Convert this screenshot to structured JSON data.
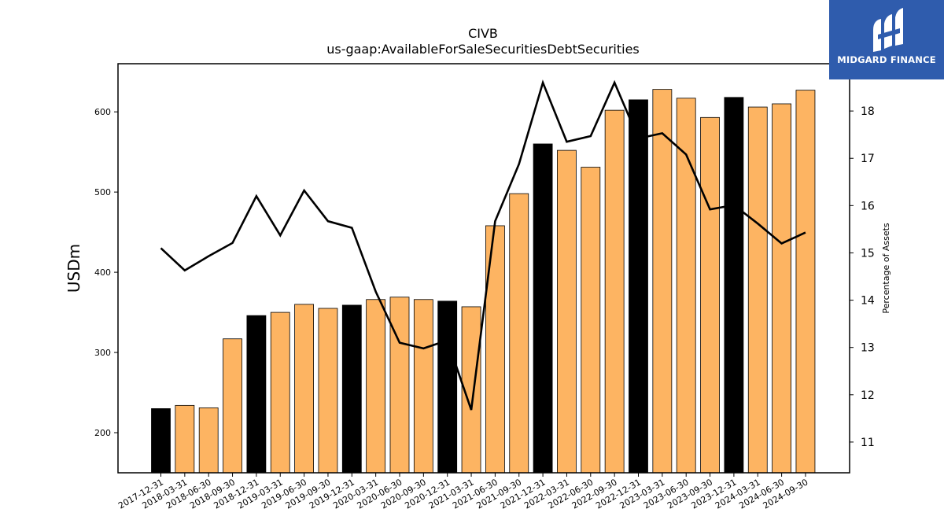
{
  "chart_data": {
    "type": "bar",
    "title": "CIVB",
    "subtitle": "us-gaap:AvailableForSaleSecuritiesDebtSecurities",
    "ylabel": "USDm",
    "y2label": "Percentage of Assets",
    "ylim": [
      150,
      660
    ],
    "y2lim": [
      10.35,
      19.0
    ],
    "yticks": [
      200,
      300,
      400,
      500,
      600
    ],
    "y2ticks": [
      11,
      12,
      13,
      14,
      15,
      16,
      17,
      18
    ],
    "grid": false,
    "categories": [
      "2017-12-31",
      "2018-03-31",
      "2018-06-30",
      "2018-09-30",
      "2018-12-31",
      "2019-03-31",
      "2019-06-30",
      "2019-09-30",
      "2019-12-31",
      "2020-03-31",
      "2020-06-30",
      "2020-09-30",
      "2020-12-31",
      "2021-03-31",
      "2021-06-30",
      "2021-09-30",
      "2021-12-31",
      "2022-03-31",
      "2022-06-30",
      "2022-09-30",
      "2022-12-31",
      "2023-03-31",
      "2023-06-30",
      "2023-09-30",
      "2023-12-31",
      "2024-03-31",
      "2024-06-30",
      "2024-09-30"
    ],
    "series": [
      {
        "kind": "bar",
        "values": [
          230,
          234,
          231,
          317,
          346,
          350,
          360,
          355,
          359,
          366,
          369,
          366,
          364,
          357,
          458,
          498,
          560,
          552,
          531,
          602,
          615,
          628,
          617,
          593,
          618,
          606,
          610,
          627
        ],
        "colors": [
          "#000000",
          "#fdb462",
          "#fdb462",
          "#fdb462",
          "#000000",
          "#fdb462",
          "#fdb462",
          "#fdb462",
          "#000000",
          "#fdb462",
          "#fdb462",
          "#fdb462",
          "#000000",
          "#fdb462",
          "#fdb462",
          "#fdb462",
          "#000000",
          "#fdb462",
          "#fdb462",
          "#fdb462",
          "#000000",
          "#fdb462",
          "#fdb462",
          "#fdb462",
          "#000000",
          "#fdb462",
          "#fdb462",
          "#fdb462"
        ]
      },
      {
        "kind": "line",
        "axis": "right",
        "color": "#000000",
        "values": [
          15.1,
          14.63,
          14.93,
          15.21,
          16.2,
          15.37,
          16.32,
          15.67,
          15.53,
          14.18,
          13.1,
          12.98,
          13.15,
          11.68,
          15.67,
          16.88,
          18.6,
          17.35,
          17.47,
          18.6,
          17.42,
          17.53,
          17.08,
          15.92,
          16.01,
          15.62,
          15.2,
          15.43
        ]
      }
    ]
  },
  "logo": {
    "text": "MIDGARD FINANCE",
    "background": "#2f5cad"
  }
}
